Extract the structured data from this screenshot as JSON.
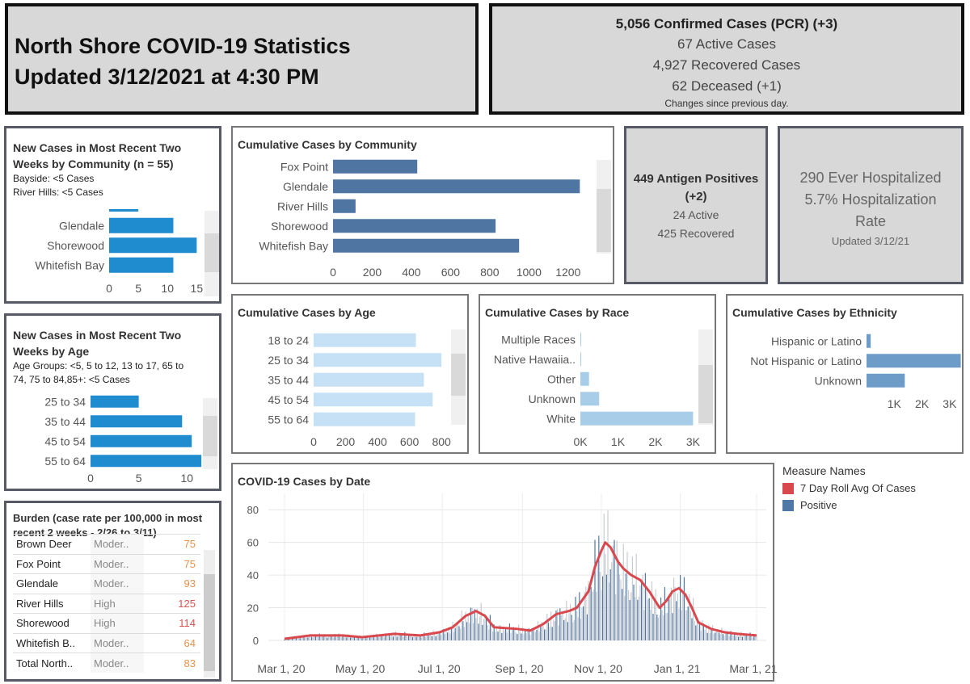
{
  "header": {
    "title_line1": "North Shore COVID-19 Statistics",
    "title_line2": "Updated 3/12/2021 at 4:30 PM"
  },
  "summary": {
    "confirmed": "5,056  Confirmed Cases (PCR) (+3)",
    "active": "67 Active Cases",
    "recovered": "4,927  Recovered Cases",
    "deceased": "62  Deceased (+1)",
    "note": "Changes since  previous day."
  },
  "antigen": {
    "line1": "449 Antigen Positives",
    "line2": "(+2)",
    "active": "24 Active",
    "recovered": "425 Recovered"
  },
  "hospital": {
    "line1": "290 Ever Hospitalized",
    "line2": "5.7%  Hospitalization",
    "line3": "Rate",
    "updated": "Updated 3/12/21"
  },
  "new_by_community": {
    "title_line1": "New Cases in Most Recent Two",
    "title_line2": "Weeks by Community (n = 55)",
    "note1": "Bayside: <5 Cases",
    "note2": "River Hills: <5 Cases"
  },
  "new_by_age": {
    "title_line1": "New Cases in Most Recent Two",
    "title_line2": "Weeks by Age",
    "note_line1": "Age Groups: <5, 5 to 12, 13 to 17, 65 to",
    "note_line2": "74, 75 to 84,85+: <5 Cases"
  },
  "burden": {
    "title_line1": "Burden (case rate per 100,000 in most",
    "title_line2": "recent 2 weeks - 2/26 to 3/11)",
    "rows": [
      {
        "name": "Brown Deer",
        "level": "Moder..",
        "rate": "75",
        "color": "#e8914a"
      },
      {
        "name": "Fox Point",
        "level": "Moder..",
        "rate": "75",
        "color": "#e8914a"
      },
      {
        "name": "Glendale",
        "level": "Moder..",
        "rate": "93",
        "color": "#e8914a"
      },
      {
        "name": "River Hills",
        "level": "High",
        "rate": "125",
        "color": "#d9534f"
      },
      {
        "name": "Shorewood",
        "level": "High",
        "rate": "114",
        "color": "#d9534f"
      },
      {
        "name": "Whitefish B..",
        "level": "Moder..",
        "rate": "64",
        "color": "#e8914a"
      },
      {
        "name": "Total North..",
        "level": "Moder..",
        "rate": "83",
        "color": "#e8914a"
      }
    ]
  },
  "legend": {
    "title": "Measure Names",
    "items": [
      {
        "label": "7 Day Roll Avg Of Cases",
        "color": "#d9484d"
      },
      {
        "label": "Positive",
        "color": "#4e79a7"
      }
    ]
  },
  "chart_data": [
    {
      "type": "bar",
      "id": "new_community",
      "categories": [
        "Glendale",
        "Shorewood",
        "Whitefish Bay"
      ],
      "values": [
        11,
        15,
        11
      ],
      "partial_top_value": 5,
      "ticks": [
        "0",
        "5",
        "10",
        "15"
      ],
      "xlim": [
        0,
        18
      ],
      "color": "#1f8ccf"
    },
    {
      "type": "bar",
      "id": "new_age",
      "categories": [
        "25 to 34",
        "35 to 44",
        "45 to 54",
        "55 to 64"
      ],
      "values": [
        5,
        9.5,
        10.5,
        11.5
      ],
      "ticks": [
        "0",
        "5",
        "10"
      ],
      "xlim": [
        0,
        13
      ],
      "color": "#1f8ccf"
    },
    {
      "type": "bar",
      "id": "cum_community",
      "title": "Cumulative Cases by Community",
      "categories": [
        "Fox Point",
        "Glendale",
        "River Hills",
        "Shorewood",
        "Whitefish Bay"
      ],
      "values": [
        430,
        1260,
        115,
        830,
        950
      ],
      "ticks": [
        "0",
        "200",
        "400",
        "600",
        "800",
        "1000",
        "1200"
      ],
      "xlim": [
        0,
        1300
      ],
      "color": "#4f76a3"
    },
    {
      "type": "bar",
      "id": "cum_age",
      "title": "Cumulative Cases by Age",
      "categories": [
        "18 to 24",
        "25 to 34",
        "35 to 44",
        "45 to 54",
        "55 to 64"
      ],
      "values": [
        640,
        800,
        690,
        745,
        635
      ],
      "ticks": [
        "0",
        "200",
        "400",
        "600",
        "800"
      ],
      "xlim": [
        0,
        850
      ],
      "color": "#c6e0f5"
    },
    {
      "type": "bar",
      "id": "cum_race",
      "title": "Cumulative Cases by Race",
      "categories": [
        "Multiple Races",
        "Native Hawaiia..",
        "Other",
        "Unknown",
        "White"
      ],
      "values": [
        20,
        5,
        230,
        500,
        3000
      ],
      "ticks": [
        "0K",
        "1K",
        "2K",
        "3K"
      ],
      "xlim": [
        0,
        3400
      ],
      "color": "#a8cde9"
    },
    {
      "type": "bar",
      "id": "cum_ethnicity",
      "title": "Cumulative Cases by Ethnicity",
      "categories": [
        "Hispanic or Latino",
        "Not Hispanic or Latino",
        "Unknown"
      ],
      "values": [
        150,
        3400,
        1380
      ],
      "ticks": [
        "1K",
        "2K",
        "3K"
      ],
      "xlim": [
        0,
        3500
      ],
      "color": "#6d9cc8"
    },
    {
      "type": "line",
      "id": "by_date",
      "title": "COVID-19 Cases by Date",
      "x_ticks": [
        "Mar 1, 20",
        "May 1, 20",
        "Jul 1, 20",
        "Sep 1, 20",
        "Nov 1, 20",
        "Jan 1, 21",
        "Mar 1, 21"
      ],
      "y_ticks": [
        "0",
        "20",
        "40",
        "60",
        "80"
      ],
      "ylim": [
        0,
        90
      ],
      "series": [
        {
          "name": "7 Day Roll Avg Of Cases",
          "color": "#d9484d",
          "points": [
            [
              0,
              1
            ],
            [
              20,
              3
            ],
            [
              45,
              3
            ],
            [
              60,
              2
            ],
            [
              85,
              4
            ],
            [
              105,
              3
            ],
            [
              120,
              5
            ],
            [
              130,
              8
            ],
            [
              140,
              15
            ],
            [
              148,
              18
            ],
            [
              155,
              15
            ],
            [
              162,
              8
            ],
            [
              180,
              7
            ],
            [
              190,
              6
            ],
            [
              200,
              10
            ],
            [
              210,
              16
            ],
            [
              220,
              18
            ],
            [
              226,
              20
            ],
            [
              235,
              30
            ],
            [
              240,
              45
            ],
            [
              245,
              55
            ],
            [
              248,
              60
            ],
            [
              252,
              57
            ],
            [
              258,
              48
            ],
            [
              262,
              44
            ],
            [
              268,
              40
            ],
            [
              275,
              37
            ],
            [
              282,
              30
            ],
            [
              290,
              20
            ],
            [
              295,
              24
            ],
            [
              300,
              30
            ],
            [
              305,
              32
            ],
            [
              310,
              28
            ],
            [
              315,
              20
            ],
            [
              320,
              11
            ],
            [
              330,
              7
            ],
            [
              340,
              5
            ],
            [
              350,
              4
            ],
            [
              365,
              3
            ]
          ]
        },
        {
          "name": "Positive",
          "color": "#4e79a7",
          "type": "bar"
        }
      ]
    }
  ]
}
